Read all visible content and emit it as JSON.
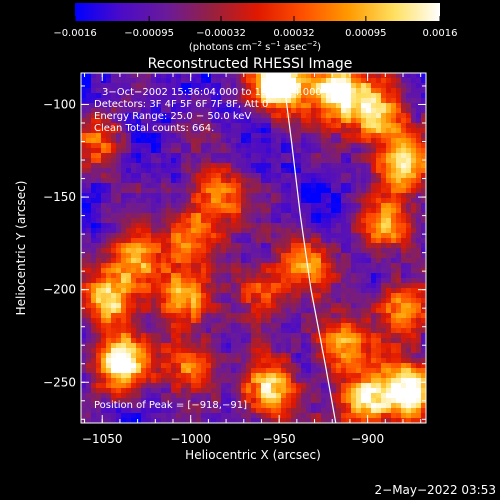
{
  "chart_data": {
    "type": "heatmap",
    "title": "Reconstructed RHESSI Image",
    "xlabel": "Heliocentric X (arcsec)",
    "ylabel": "Heliocentric Y (arcsec)",
    "xlim": [
      -1062,
      -867
    ],
    "ylim": [
      -272,
      -83
    ],
    "x_ticks": [
      {
        "value": -1050,
        "label": "−1050"
      },
      {
        "value": -1000,
        "label": "−1000"
      },
      {
        "value": -950,
        "label": "−950"
      },
      {
        "value": -900,
        "label": "−900"
      }
    ],
    "y_ticks": [
      {
        "value": -100,
        "label": "−100"
      },
      {
        "value": -150,
        "label": "−150"
      },
      {
        "value": -200,
        "label": "−200"
      },
      {
        "value": -250,
        "label": "−250"
      }
    ],
    "colorbar": {
      "range": [
        -0.0016,
        0.0016
      ],
      "tick_labels": [
        "−0.0016",
        "−0.00095",
        "−0.00032",
        "0.00032",
        "0.00095",
        "0.0016"
      ],
      "unit_text": "(photons cm",
      "unit_exp1": "−2",
      "unit_mid": " s",
      "unit_exp2": "−1",
      "unit_tail": " asec",
      "unit_exp3": "−2",
      "unit_close": ")",
      "stops": [
        "#0000ff",
        "#4b0bc8",
        "#6a1a9a",
        "#962040",
        "#e01800",
        "#ff5000",
        "#ff9a00",
        "#ffe060",
        "#ffffff"
      ]
    },
    "info_lines": [
      "3−Oct−2002 15:36:04.000 to 15:36:24.000",
      "Detectors: 3F 4F 5F 6F 7F 8F, Att 0",
      "Energy Range: 25.0 − 50.0 keV",
      "Clean    Total counts: 664."
    ],
    "peak_label": "Position of Peak = [−918,−91]",
    "limb_curve": [
      [
        -948,
        -83
      ],
      [
        -943,
        -120
      ],
      [
        -938,
        -160
      ],
      [
        -932,
        -200
      ],
      [
        -924,
        -240
      ],
      [
        -918,
        -272
      ]
    ],
    "hotspots": [
      {
        "x": -950,
        "y": -90,
        "v": 1.0
      },
      {
        "x": -918,
        "y": -91,
        "v": 0.95
      },
      {
        "x": -895,
        "y": -105,
        "v": 0.75
      },
      {
        "x": -880,
        "y": -130,
        "v": 0.8
      },
      {
        "x": -890,
        "y": -165,
        "v": 0.55
      },
      {
        "x": -985,
        "y": -150,
        "v": 0.6
      },
      {
        "x": -1000,
        "y": -170,
        "v": 0.55
      },
      {
        "x": -1030,
        "y": -185,
        "v": 0.65
      },
      {
        "x": -1045,
        "y": -205,
        "v": 0.7
      },
      {
        "x": -1005,
        "y": -205,
        "v": 0.6
      },
      {
        "x": -960,
        "y": -200,
        "v": 0.55
      },
      {
        "x": -935,
        "y": -185,
        "v": 0.5
      },
      {
        "x": -1040,
        "y": -240,
        "v": 0.85
      },
      {
        "x": -1000,
        "y": -240,
        "v": 0.6
      },
      {
        "x": -955,
        "y": -255,
        "v": 0.75
      },
      {
        "x": -915,
        "y": -230,
        "v": 0.7
      },
      {
        "x": -880,
        "y": -210,
        "v": 0.65
      },
      {
        "x": -875,
        "y": -255,
        "v": 0.9
      },
      {
        "x": -900,
        "y": -260,
        "v": 0.75
      },
      {
        "x": -1050,
        "y": -120,
        "v": 0.45
      }
    ]
  },
  "footer": {
    "timestamp": "2−May−2022 03:53"
  }
}
